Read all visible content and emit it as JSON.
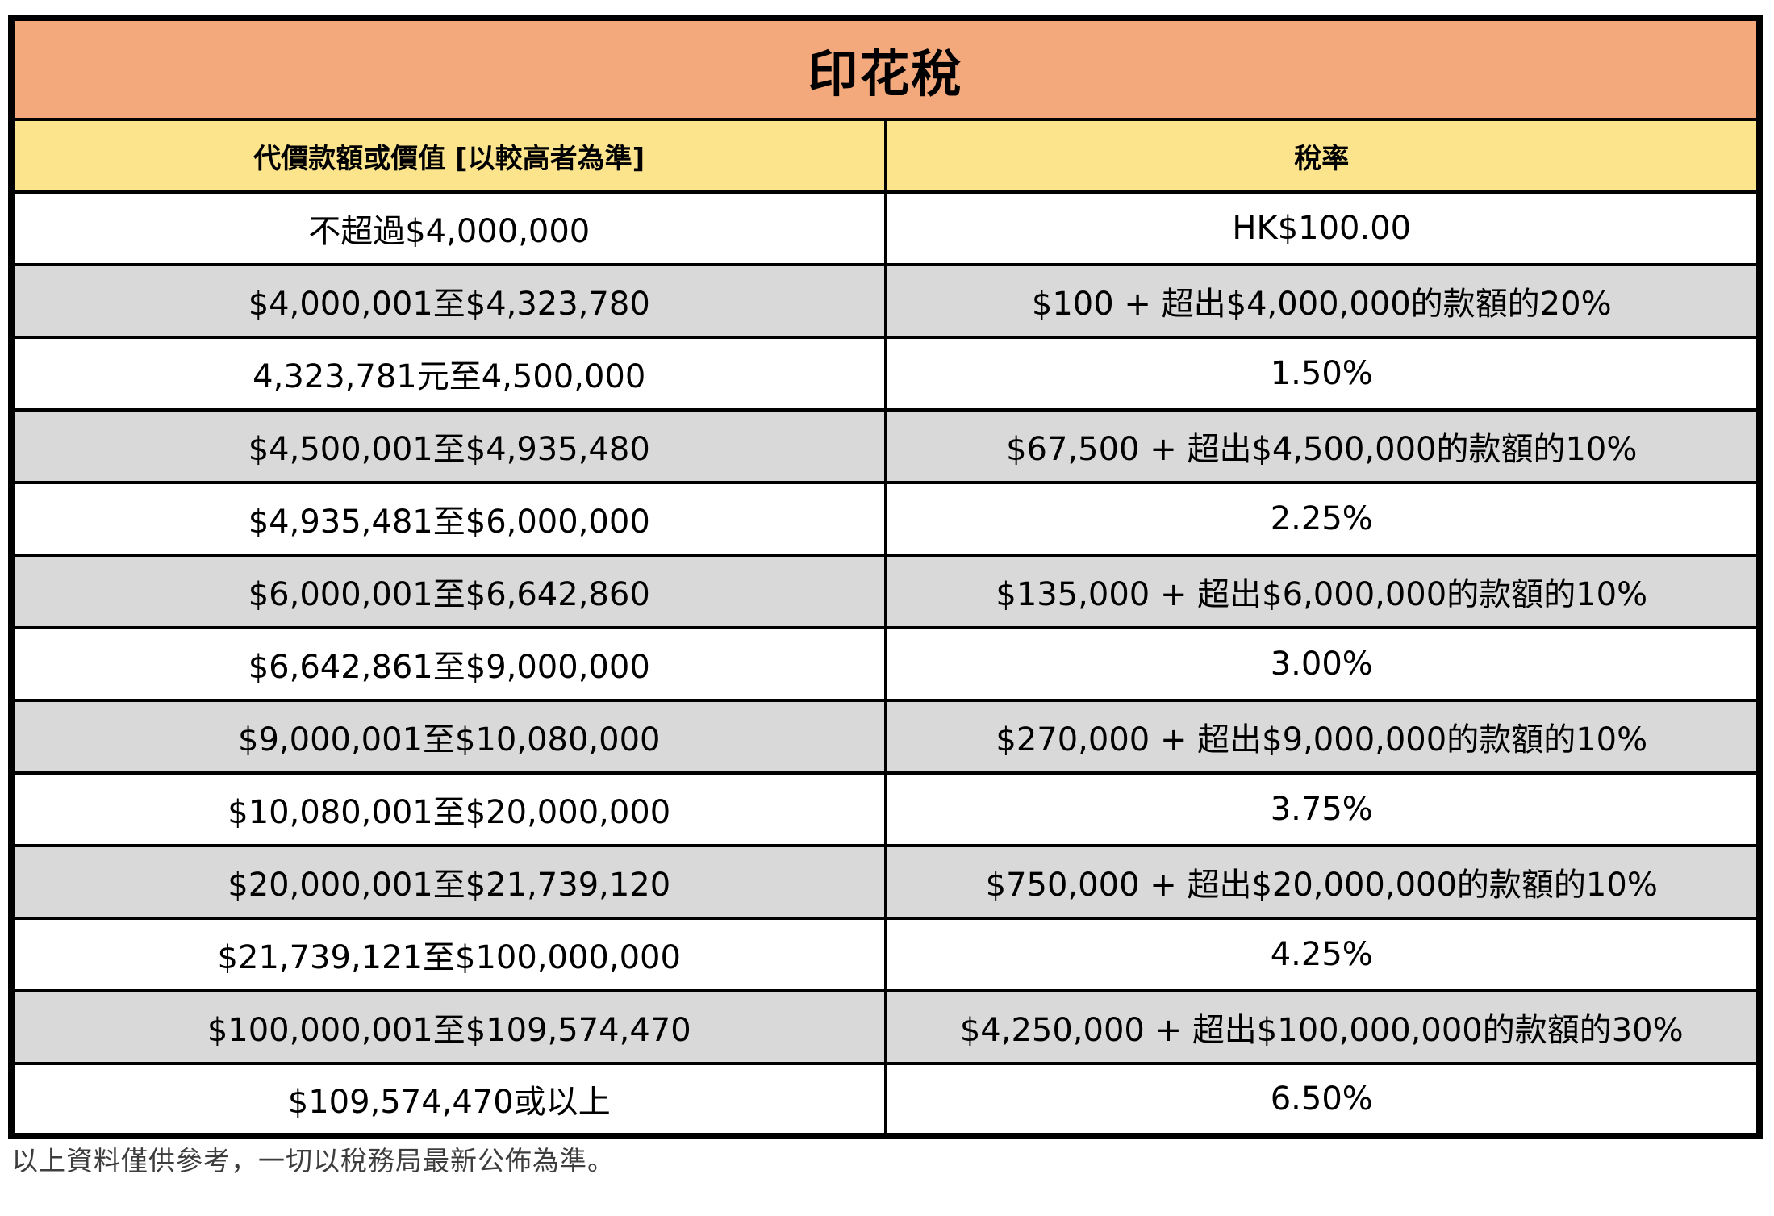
{
  "title": "印花稅",
  "columns": {
    "range": "代價款額或價值 [以較高者為準]",
    "rate": "稅率"
  },
  "rows": [
    {
      "range": "不超過$4,000,000",
      "rate": "HK$100.00"
    },
    {
      "range": "$4,000,001至$4,323,780",
      "rate": "$100 + 超出$4,000,000的款額的20%"
    },
    {
      "range": "4,323,781元至4,500,000",
      "rate": "1.50%"
    },
    {
      "range": "$4,500,001至$4,935,480",
      "rate": "$67,500 + 超出$4,500,000的款額的10%"
    },
    {
      "range": "$4,935,481至$6,000,000",
      "rate": "2.25%"
    },
    {
      "range": "$6,000,001至$6,642,860",
      "rate": "$135,000 + 超出$6,000,000的款額的10%"
    },
    {
      "range": "$6,642,861至$9,000,000",
      "rate": "3.00%"
    },
    {
      "range": "$9,000,001至$10,080,000",
      "rate": "$270,000 + 超出$9,000,000的款額的10%"
    },
    {
      "range": "$10,080,001至$20,000,000",
      "rate": "3.75%"
    },
    {
      "range": "$20,000,001至$21,739,120",
      "rate": "$750,000 + 超出$20,000,000的款額的10%"
    },
    {
      "range": "$21,739,121至$100,000,000",
      "rate": "4.25%"
    },
    {
      "range": "$100,000,001至$109,574,470",
      "rate": "$4,250,000 + 超出$100,000,000的款額的30%"
    },
    {
      "range": "$109,574,470或以上",
      "rate": "6.50%"
    }
  ],
  "footnote": "以上資料僅供參考，一切以稅務局最新公佈為準。",
  "colors": {
    "title_bg": "#F4A97C",
    "subheader_bg": "#FBE48C",
    "row_bg": "#FFFFFF",
    "row_alt_bg": "#D9D9D9",
    "border": "#000000"
  }
}
